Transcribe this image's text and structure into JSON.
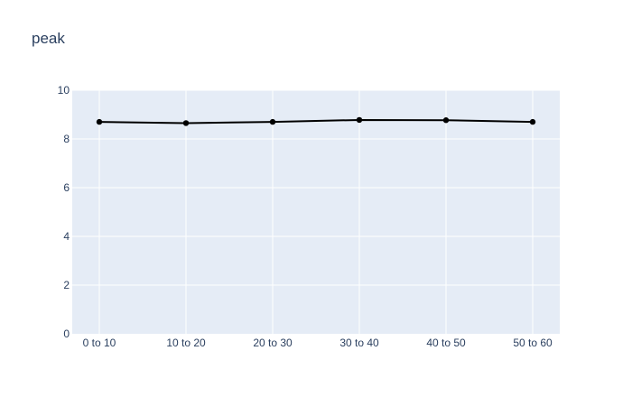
{
  "chart_data": {
    "type": "line",
    "title": "peak",
    "xlabel": "",
    "ylabel": "",
    "categories": [
      "0 to 10",
      "10 to 20",
      "20 to 30",
      "30 to 40",
      "40 to 50",
      "50 to 60"
    ],
    "series": [
      {
        "values": [
          8.7,
          8.65,
          8.7,
          8.78,
          8.77,
          8.7
        ],
        "color": "#000000",
        "mode": "lines+markers"
      }
    ],
    "ylim": [
      0,
      10
    ],
    "yticks": [
      0,
      2,
      4,
      6,
      8,
      10
    ],
    "grid": true,
    "legend": "none",
    "colors": {
      "plot_background": "#e5ecf6",
      "gridline": "#ffffff",
      "text": "#2a3f5f"
    }
  }
}
